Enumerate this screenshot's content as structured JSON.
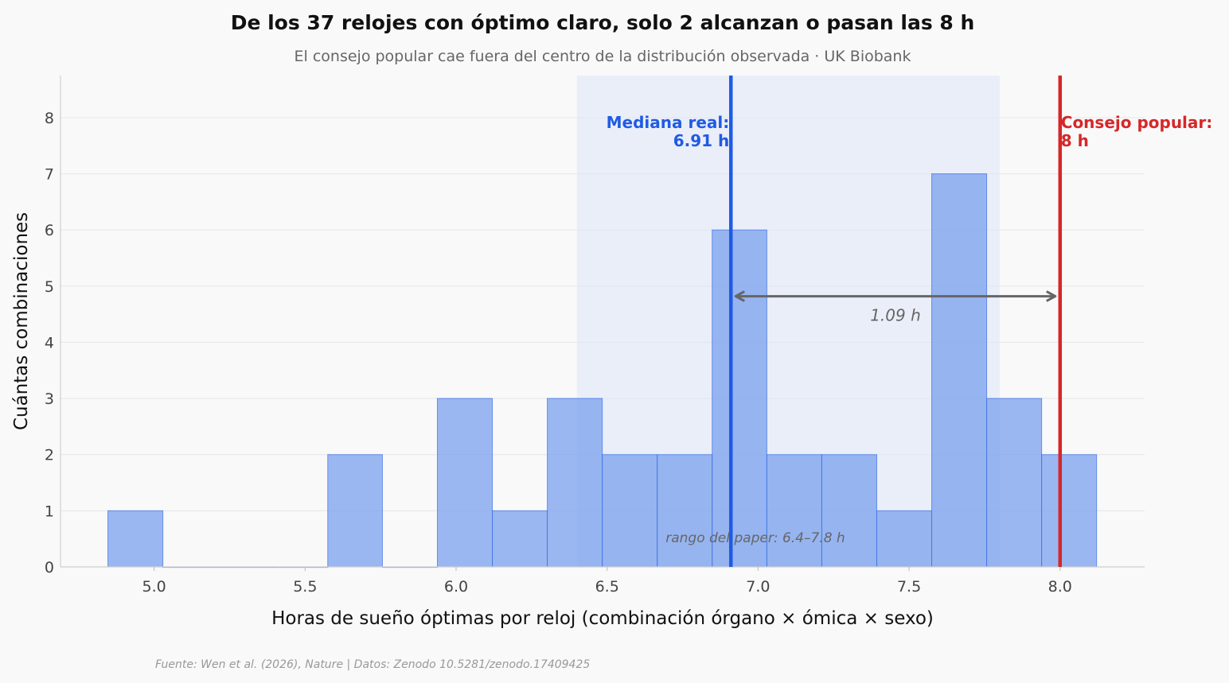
{
  "chart_data": {
    "type": "bar",
    "title": "De los 37 relojes con óptimo claro, solo 2 alcanzan o pasan las 8 h",
    "subtitle": "El consejo popular cae fuera del centro de la distribución observada · UK Biobank",
    "xlabel": "Horas de sueño óptimas por reloj (combinación órgano × ómica × sexo)",
    "ylabel": "Cuántas combinaciones",
    "xlim": [
      4.69,
      8.28
    ],
    "ylim": [
      0,
      8.75
    ],
    "x_ticks": [
      "5.0",
      "5.5",
      "6.0",
      "6.5",
      "7.0",
      "7.5",
      "8.0"
    ],
    "y_ticks": [
      "0",
      "1",
      "2",
      "3",
      "4",
      "5",
      "6",
      "7",
      "8"
    ],
    "grid": "horizontal",
    "bins": [
      {
        "start": 4.847,
        "end": 5.029,
        "count": 1
      },
      {
        "start": 5.029,
        "end": 5.211,
        "count": 0
      },
      {
        "start": 5.211,
        "end": 5.393,
        "count": 0
      },
      {
        "start": 5.393,
        "end": 5.575,
        "count": 0
      },
      {
        "start": 5.575,
        "end": 5.756,
        "count": 2
      },
      {
        "start": 5.756,
        "end": 5.938,
        "count": 0
      },
      {
        "start": 5.938,
        "end": 6.12,
        "count": 3
      },
      {
        "start": 6.12,
        "end": 6.302,
        "count": 1
      },
      {
        "start": 6.302,
        "end": 6.484,
        "count": 3
      },
      {
        "start": 6.484,
        "end": 6.666,
        "count": 2
      },
      {
        "start": 6.666,
        "end": 6.848,
        "count": 2
      },
      {
        "start": 6.848,
        "end": 7.029,
        "count": 6
      },
      {
        "start": 7.029,
        "end": 7.211,
        "count": 2
      },
      {
        "start": 7.211,
        "end": 7.393,
        "count": 2
      },
      {
        "start": 7.393,
        "end": 7.575,
        "count": 1
      },
      {
        "start": 7.575,
        "end": 7.757,
        "count": 7
      },
      {
        "start": 7.757,
        "end": 7.939,
        "count": 3
      },
      {
        "start": 7.939,
        "end": 8.121,
        "count": 2
      }
    ],
    "shaded_range": {
      "from": 6.4,
      "to": 7.8,
      "label": "rango del paper: 6.4–7.8 h"
    },
    "median_line": {
      "x": 6.91,
      "label_line1": "Mediana real:",
      "label_line2": "6.91 h",
      "color": "#1f5be3"
    },
    "advice_line": {
      "x": 8.0,
      "label_line1": "Consejo popular:",
      "label_line2": "8 h",
      "color": "#d62728"
    },
    "gap_arrow": {
      "from": 6.91,
      "to": 8.0,
      "y": 4.82,
      "label": "1.09 h"
    },
    "colors": {
      "bar": "#6f98ec",
      "bar_edge": "#3a6fe6",
      "shade": "#dfe6f8",
      "arrow": "#666666"
    }
  },
  "source": "Fuente: Wen et al. (2026), Nature | Datos: Zenodo 10.5281/zenodo.17409425"
}
